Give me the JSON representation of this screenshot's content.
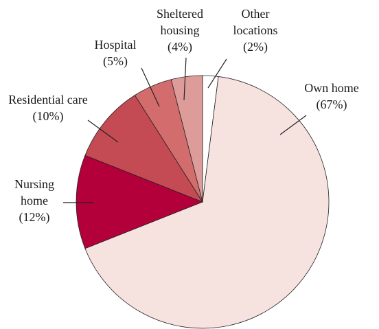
{
  "chart_data": {
    "type": "pie",
    "categories": [
      "Other locations",
      "Own home",
      "Nursing home",
      "Residential care",
      "Hospital",
      "Sheltered housing"
    ],
    "values": [
      2,
      67,
      12,
      10,
      5,
      4
    ],
    "value_labels": [
      "(2%)",
      "(67%)",
      "(12%)",
      "(10%)",
      "(5%)",
      "(4%)"
    ],
    "colors": [
      "#ffffff",
      "#f6e2df",
      "#b3003a",
      "#c44b53",
      "#d36c6c",
      "#dd9c99"
    ]
  }
}
